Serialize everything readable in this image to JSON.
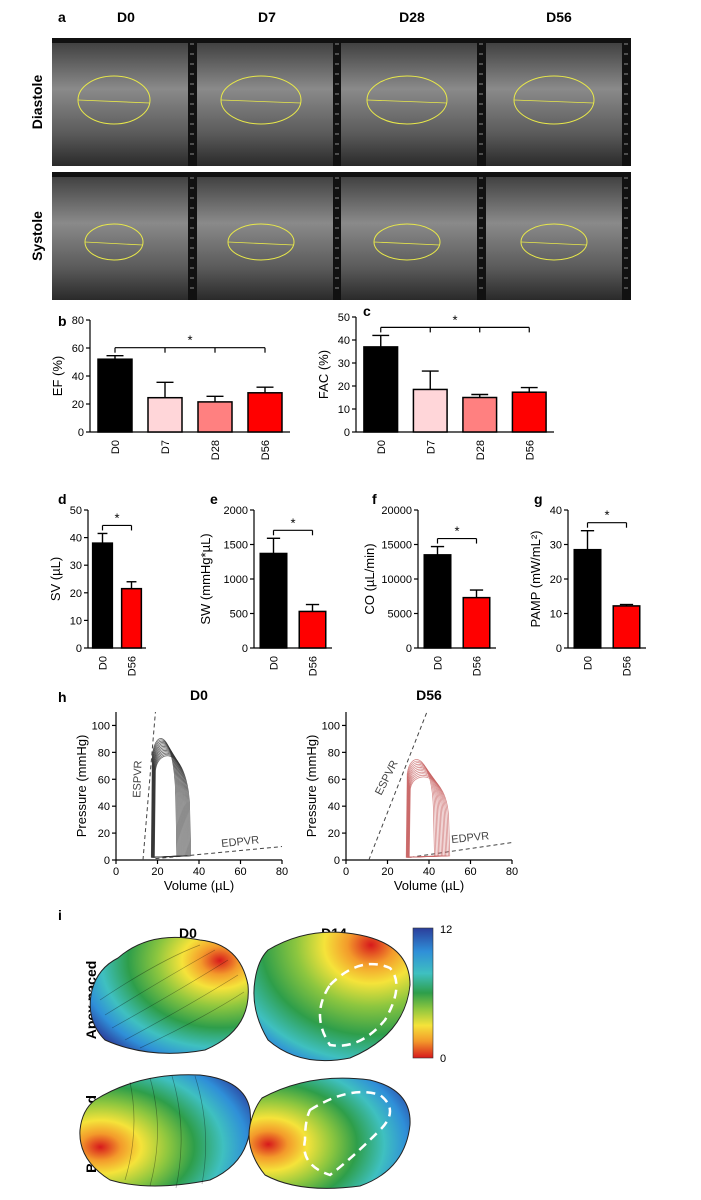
{
  "panels": {
    "a": "a",
    "b": "b",
    "c": "c",
    "d": "d",
    "e": "e",
    "f": "f",
    "g": "g",
    "h": "h",
    "i": "i"
  },
  "panel_a": {
    "columns": [
      "D0",
      "D7",
      "D28",
      "D56"
    ],
    "rows": [
      "Diastole",
      "Systole"
    ]
  },
  "colors": {
    "D0": "#000000",
    "D7": "#ffd6d9",
    "D28": "#ff8080",
    "D56": "#ff0000",
    "loop_D0": "#333333",
    "loop_D56": "#c86464",
    "trace": "#e8e84a"
  },
  "chart_data": [
    {
      "id": "b",
      "type": "bar",
      "ylabel": "EF (%)",
      "ylim": [
        0,
        80
      ],
      "yticks": [
        0,
        20,
        40,
        60,
        80
      ],
      "categories": [
        "D0",
        "D7",
        "D28",
        "D56"
      ],
      "values": [
        52,
        24.5,
        21.5,
        28
      ],
      "errors": [
        2.5,
        11,
        4,
        4
      ],
      "significance": "*"
    },
    {
      "id": "c",
      "type": "bar",
      "ylabel": "FAC (%)",
      "ylim": [
        0,
        50
      ],
      "yticks": [
        0,
        10,
        20,
        30,
        40,
        50
      ],
      "categories": [
        "D0",
        "D7",
        "D28",
        "D56"
      ],
      "values": [
        37,
        18.5,
        15,
        17.3
      ],
      "errors": [
        5,
        8,
        1.3,
        2
      ],
      "significance": "*"
    },
    {
      "id": "d",
      "type": "bar",
      "ylabel": "SV (µL)",
      "ylim": [
        0,
        50
      ],
      "yticks": [
        0,
        10,
        20,
        30,
        40,
        50
      ],
      "categories": [
        "D0",
        "D56"
      ],
      "values": [
        38,
        21.5
      ],
      "errors": [
        3.5,
        2.5
      ],
      "significance": "*"
    },
    {
      "id": "e",
      "type": "bar",
      "ylabel": "SW (mmHg*µL)",
      "ylim": [
        0,
        2000
      ],
      "yticks": [
        0,
        500,
        1000,
        1500,
        2000
      ],
      "categories": [
        "D0",
        "D56"
      ],
      "values": [
        1370,
        530
      ],
      "errors": [
        220,
        100
      ],
      "significance": "*"
    },
    {
      "id": "f",
      "type": "bar",
      "ylabel": "CO (µL/min)",
      "ylim": [
        0,
        20000
      ],
      "yticks": [
        0,
        5000,
        10000,
        15000,
        20000
      ],
      "categories": [
        "D0",
        "D56"
      ],
      "values": [
        13500,
        7300
      ],
      "errors": [
        1200,
        1100
      ],
      "significance": "*"
    },
    {
      "id": "g",
      "type": "bar",
      "ylabel": "PAMP (mW/mL²)",
      "ylim": [
        0,
        40
      ],
      "yticks": [
        0,
        10,
        20,
        30,
        40
      ],
      "categories": [
        "D0",
        "D56"
      ],
      "values": [
        28.5,
        12.2
      ],
      "errors": [
        5.5,
        0.4
      ],
      "significance": "*"
    },
    {
      "id": "h1",
      "type": "line",
      "title": "D0",
      "xlabel": "Volume (µL)",
      "ylabel": "Pressure (mmHg)",
      "xlim": [
        0,
        80
      ],
      "ylim": [
        0,
        110
      ],
      "xticks": [
        0,
        20,
        40,
        60,
        80
      ],
      "yticks": [
        0,
        20,
        40,
        60,
        80,
        100
      ],
      "annotations": [
        "ESPVR",
        "EDPVR"
      ],
      "loop": {
        "v_min": 17,
        "v_max": 36,
        "p_max": 97,
        "count": 14
      },
      "espvr": {
        "x": [
          13,
          19
        ],
        "y": [
          0,
          110
        ]
      },
      "edpvr": {
        "x": [
          19,
          80
        ],
        "y": [
          1,
          10
        ]
      }
    },
    {
      "id": "h2",
      "type": "line",
      "title": "D56",
      "xlabel": "Volume (µL)",
      "ylabel": "Pressure (mmHg)",
      "xlim": [
        0,
        80
      ],
      "ylim": [
        0,
        110
      ],
      "xticks": [
        0,
        20,
        40,
        60,
        80
      ],
      "yticks": [
        0,
        20,
        40,
        60,
        80,
        100
      ],
      "annotations": [
        "ESPVR",
        "EDPVR"
      ],
      "loop": {
        "v_min": 29,
        "v_max": 50,
        "p_max": 80,
        "count": 12
      },
      "espvr": {
        "x": [
          11,
          39
        ],
        "y": [
          0,
          110
        ]
      },
      "edpvr": {
        "x": [
          31,
          80
        ],
        "y": [
          2,
          13
        ]
      }
    },
    {
      "id": "i",
      "type": "heatmap",
      "columns": [
        "D0",
        "D14"
      ],
      "rows": [
        "Apex paced",
        "Base paced"
      ],
      "scale": {
        "min": 0,
        "max": 12,
        "min_label": "0",
        "max_label": "12"
      }
    }
  ]
}
